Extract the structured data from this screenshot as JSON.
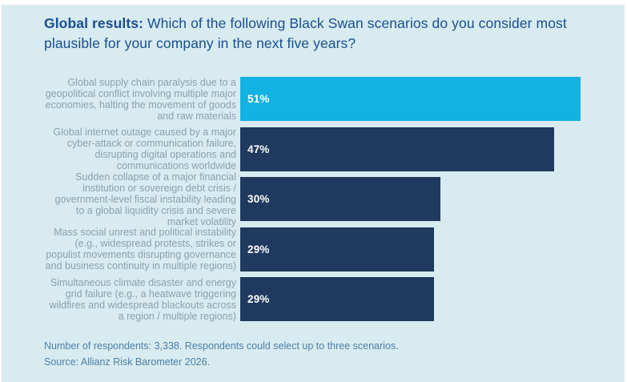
{
  "header": {
    "title_bold": "Global results:",
    "title_rest": " Which of the following Black Swan scenarios do you consider most plausible for your company in the next five years?"
  },
  "chart_data": {
    "type": "bar",
    "orientation": "horizontal",
    "title": "Global results: Which of the following Black Swan scenarios do you consider most plausible for your company in the next five years?",
    "categories": [
      "Global supply chain paralysis due to a geopolitical conflict involving multiple major economies, halting the movement of goods and raw materials",
      "Global internet outage caused by a major cyber-attack or communication failure, disrupting digital operations and communications worldwide",
      "Sudden collapse of a major financial institution or sovereign debt crisis / government-level fiscal instability leading to a global liquidity crisis and severe market volatility",
      "Mass social unrest and political instability (e.g., widespread protests, strikes or populist movements disrupting governance and business continuity in multiple regions)",
      "Simultaneous climate disaster and energy grid failure (e.g., a heatwave triggering wildfires and widespread blackouts across a region / multiple regions)"
    ],
    "values": [
      51,
      47,
      30,
      29,
      29
    ],
    "value_labels": [
      "51%",
      "47%",
      "30%",
      "29%",
      "29%"
    ],
    "bar_colors": [
      "#12b2e2",
      "#1f3a5e",
      "#1f3a5e",
      "#1f3a5e",
      "#1f3a5e"
    ],
    "xlim": [
      0,
      51
    ],
    "unit": "%",
    "grid": false,
    "legend": false
  },
  "footer": {
    "note": "Number of respondents: 3,338. Respondents could select up to three scenarios.",
    "source": "Source: Allianz Risk Barometer 2026."
  },
  "colors": {
    "page_background": "#ffffff",
    "panel_background": "#d7ebf0",
    "title_text": "#1a4e8f",
    "category_text": "#8ba1af",
    "footer_text": "#4d7fa5",
    "bar_highlight": "#12b2e2",
    "bar_default": "#1f3a5e",
    "value_text": "#ffffff"
  }
}
